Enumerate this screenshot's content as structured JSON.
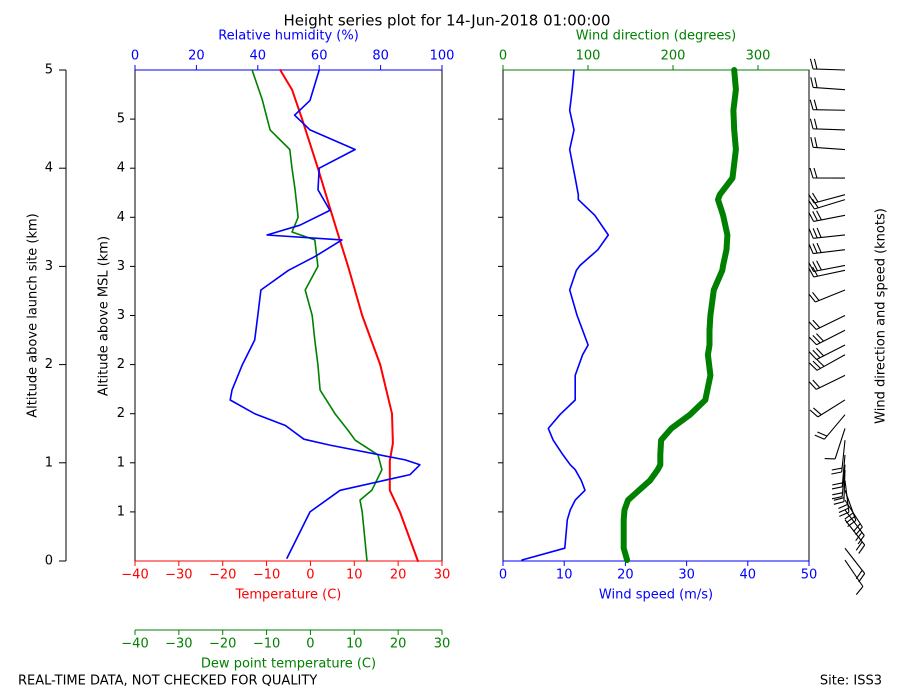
{
  "chart_data": [
    {
      "type": "profile",
      "title": "Height series plot for 14-Jun-2018 01:00:00",
      "ylabel": "Altitude above launch site (km)",
      "ylim": [
        0,
        5
      ],
      "yticks": [
        0,
        1,
        2,
        3,
        4,
        5
      ],
      "y2label": "Altitude above MSL (km)",
      "y2lim": [
        0.5,
        5.5
      ],
      "y2ticks": [
        {
          "value": 1,
          "label": "1"
        },
        {
          "value": 1.5,
          "label": "1"
        },
        {
          "value": 2,
          "label": "2"
        },
        {
          "value": 2.5,
          "label": "2"
        },
        {
          "value": 3,
          "label": "3"
        },
        {
          "value": 3.5,
          "label": "3"
        },
        {
          "value": 4,
          "label": "4"
        },
        {
          "value": 4.5,
          "label": "4"
        },
        {
          "value": 5,
          "label": "5"
        }
      ],
      "axes": [
        {
          "label": "Temperature (C)",
          "color": "#ff0000",
          "position": "bottom",
          "lim": [
            -40,
            30
          ],
          "ticks": [
            {
              "value": -40,
              "label": "−40"
            },
            {
              "value": -30,
              "label": "−30"
            },
            {
              "value": -20,
              "label": "−20"
            },
            {
              "value": -10,
              "label": "−10"
            },
            0,
            10,
            20,
            30
          ]
        },
        {
          "label": "Dew point temperature (C)",
          "color": "#008000",
          "position": "offset",
          "lim": [
            -40,
            30
          ],
          "ticks": [
            {
              "value": -40,
              "label": "−40"
            },
            {
              "value": -30,
              "label": "−30"
            },
            {
              "value": -20,
              "label": "−20"
            },
            {
              "value": -10,
              "label": "−10"
            },
            0,
            10,
            20,
            30
          ]
        },
        {
          "label": "Relative humidity (%)",
          "color": "#0000ff",
          "position": "top",
          "lim": [
            0,
            100
          ],
          "ticks": [
            0,
            20,
            40,
            60,
            80,
            100
          ]
        }
      ],
      "series": [
        {
          "axis": 0,
          "color": "#ff0000",
          "line_width": 2,
          "y": [
            0,
            0.5,
            0.72,
            1.02,
            1.2,
            1.5,
            2.0,
            2.5,
            3.0,
            3.27,
            3.5,
            4.0,
            4.5,
            4.8,
            5.0
          ],
          "values": [
            24.5,
            20.4,
            18.1,
            18.1,
            18.8,
            18.6,
            15.9,
            11.8,
            8.6,
            6.7,
            5.1,
            1.7,
            -1.9,
            -4.2,
            -6.9
          ]
        },
        {
          "axis": 1,
          "color": "#008000",
          "line_width": 1.6,
          "y": [
            0,
            0.5,
            0.62,
            0.72,
            0.93,
            1.08,
            1.23,
            1.33,
            1.5,
            1.74,
            2.0,
            2.25,
            2.5,
            2.76,
            3.0,
            3.27,
            3.35,
            3.5,
            3.78,
            4.0,
            4.19,
            4.39,
            4.7,
            5.0
          ],
          "values": [
            12.9,
            11.8,
            11.3,
            14,
            16.3,
            15.4,
            10.2,
            8.6,
            5.6,
            2.2,
            1.7,
            1.0,
            0.4,
            -1.2,
            1.7,
            1.0,
            -4.2,
            -2.8,
            -3.5,
            -4.2,
            -4.7,
            -9.2,
            -11,
            -13.3
          ]
        },
        {
          "axis": 2,
          "color": "#0000ff",
          "line_width": 1.6,
          "y": [
            0.03,
            0.5,
            0.72,
            0.88,
            0.98,
            1.03,
            1.18,
            1.24,
            1.38,
            1.5,
            1.64,
            1.74,
            2.0,
            2.25,
            2.5,
            2.76,
            2.96,
            3.1,
            3.27,
            3.32,
            3.42,
            3.57,
            3.78,
            4.0,
            4.19,
            4.39,
            4.54,
            4.69,
            5.0
          ],
          "values": [
            49.5,
            57,
            66.8,
            89.6,
            92.8,
            88,
            63.5,
            55,
            49,
            39,
            31,
            31.6,
            35,
            39,
            40,
            41,
            50,
            58.6,
            67.4,
            43,
            53.7,
            63.5,
            59.6,
            60,
            71.7,
            57,
            52,
            57,
            60
          ]
        }
      ]
    },
    {
      "type": "wind",
      "ylim": [
        0,
        5
      ],
      "barb_label": "Wind direction and speed (knots)",
      "axes": [
        {
          "label": "Wind speed (m/s)",
          "color": "#0000ff",
          "position": "bottom",
          "lim": [
            0,
            50
          ],
          "ticks": [
            0,
            10,
            20,
            30,
            40,
            50
          ]
        },
        {
          "label": "Wind direction (degrees)",
          "color": "#008000",
          "position": "top",
          "lim": [
            0,
            360
          ],
          "ticks": [
            0,
            100,
            200,
            300
          ]
        }
      ],
      "series": [
        {
          "axis": 0,
          "color": "#0000ff",
          "line_width": 1.6,
          "y": [
            0.01,
            0.13,
            0.42,
            0.52,
            0.62,
            0.72,
            0.82,
            0.93,
            0.98,
            1.08,
            1.23,
            1.35,
            1.49,
            1.64,
            1.89,
            2.1,
            2.2,
            2.35,
            2.5,
            2.76,
            2.96,
            3.01,
            3.17,
            3.32,
            3.52,
            3.68,
            3.73,
            3.9,
            4.19,
            4.39,
            4.59,
            4.8,
            5.0
          ],
          "values": [
            3.1,
            10.1,
            10.5,
            11,
            11.8,
            13.4,
            12.8,
            11.8,
            11,
            9.8,
            8.2,
            7.4,
            9.3,
            11.8,
            11.8,
            13,
            13.9,
            13,
            12.1,
            10.9,
            12,
            12.6,
            15.5,
            17.2,
            15,
            12.3,
            12.3,
            11.8,
            10.9,
            11.6,
            10.9,
            11.3,
            11.6
          ]
        },
        {
          "axis": 1,
          "color": "#008000",
          "line_width": 6,
          "y": [
            0.01,
            0.13,
            0.42,
            0.52,
            0.62,
            0.72,
            0.82,
            0.93,
            0.98,
            1.08,
            1.23,
            1.35,
            1.49,
            1.64,
            1.89,
            2.1,
            2.2,
            2.35,
            2.5,
            2.76,
            2.96,
            3.01,
            3.17,
            3.32,
            3.52,
            3.68,
            3.73,
            3.9,
            4.19,
            4.39,
            4.59,
            4.8,
            5.0
          ],
          "values": [
            146,
            142,
            142,
            143,
            147,
            160,
            173,
            182,
            185,
            185,
            186,
            198,
            220,
            238,
            244,
            241,
            243,
            243,
            244,
            248,
            258,
            259,
            263,
            264,
            259,
            253,
            255,
            270,
            274,
            272,
            271,
            274,
            272
          ]
        }
      ]
    }
  ],
  "footer": {
    "left": "REAL-TIME DATA, NOT CHECKED FOR QUALITY",
    "right": "Site: ISS3"
  }
}
